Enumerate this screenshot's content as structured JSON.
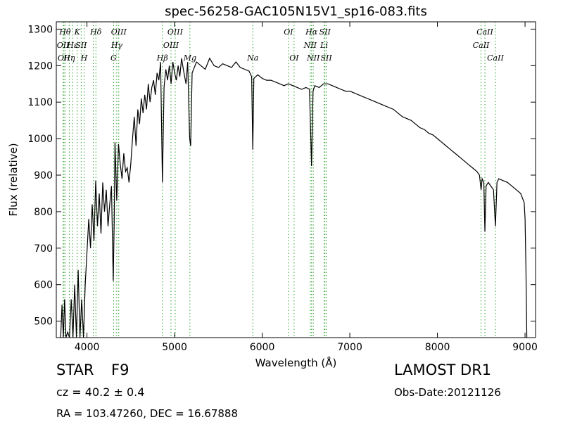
{
  "chart_data": {
    "type": "line",
    "title": "spec-56258-GAC105N15V1_sp16-083.fits",
    "xlabel": "Wavelength (Å)",
    "ylabel": "Flux (relative)",
    "xlim": [
      3650,
      9120
    ],
    "ylim": [
      455,
      1320
    ],
    "xticks": [
      4000,
      5000,
      6000,
      7000,
      8000,
      9000
    ],
    "yticks": [
      500,
      600,
      700,
      800,
      900,
      1000,
      1100,
      1200,
      1300
    ],
    "grid": false,
    "series": [
      {
        "color": "#000000",
        "points": [
          [
            3700,
            455
          ],
          [
            3715,
            545
          ],
          [
            3730,
            455
          ],
          [
            3745,
            560
          ],
          [
            3760,
            455
          ],
          [
            3780,
            470
          ],
          [
            3800,
            455
          ],
          [
            3820,
            560
          ],
          [
            3840,
            455
          ],
          [
            3860,
            600
          ],
          [
            3880,
            455
          ],
          [
            3900,
            640
          ],
          [
            3920,
            455
          ],
          [
            3940,
            560
          ],
          [
            3960,
            455
          ],
          [
            3980,
            600
          ],
          [
            4000,
            690
          ],
          [
            4020,
            780
          ],
          [
            4040,
            700
          ],
          [
            4060,
            820
          ],
          [
            4080,
            720
          ],
          [
            4100,
            885
          ],
          [
            4120,
            760
          ],
          [
            4140,
            850
          ],
          [
            4160,
            740
          ],
          [
            4180,
            880
          ],
          [
            4200,
            800
          ],
          [
            4220,
            860
          ],
          [
            4240,
            760
          ],
          [
            4260,
            820
          ],
          [
            4280,
            870
          ],
          [
            4300,
            610
          ],
          [
            4310,
            760
          ],
          [
            4320,
            990
          ],
          [
            4340,
            830
          ],
          [
            4360,
            985
          ],
          [
            4380,
            930
          ],
          [
            4400,
            890
          ],
          [
            4420,
            960
          ],
          [
            4440,
            910
          ],
          [
            4460,
            920
          ],
          [
            4480,
            880
          ],
          [
            4500,
            930
          ],
          [
            4520,
            1000
          ],
          [
            4540,
            1060
          ],
          [
            4560,
            980
          ],
          [
            4580,
            1080
          ],
          [
            4600,
            1040
          ],
          [
            4620,
            1110
          ],
          [
            4640,
            1070
          ],
          [
            4660,
            1120
          ],
          [
            4680,
            1080
          ],
          [
            4700,
            1150
          ],
          [
            4720,
            1100
          ],
          [
            4740,
            1140
          ],
          [
            4760,
            1160
          ],
          [
            4780,
            1120
          ],
          [
            4800,
            1180
          ],
          [
            4820,
            1160
          ],
          [
            4840,
            1210
          ],
          [
            4861,
            880
          ],
          [
            4880,
            1140
          ],
          [
            4900,
            1190
          ],
          [
            4920,
            1160
          ],
          [
            4940,
            1200
          ],
          [
            4960,
            1150
          ],
          [
            4980,
            1210
          ],
          [
            5000,
            1180
          ],
          [
            5020,
            1160
          ],
          [
            5040,
            1200
          ],
          [
            5060,
            1170
          ],
          [
            5080,
            1220
          ],
          [
            5100,
            1190
          ],
          [
            5130,
            1150
          ],
          [
            5150,
            1210
          ],
          [
            5172,
            1000
          ],
          [
            5183,
            980
          ],
          [
            5200,
            1180
          ],
          [
            5250,
            1210
          ],
          [
            5300,
            1200
          ],
          [
            5350,
            1190
          ],
          [
            5400,
            1220
          ],
          [
            5450,
            1200
          ],
          [
            5500,
            1195
          ],
          [
            5550,
            1205
          ],
          [
            5600,
            1200
          ],
          [
            5650,
            1195
          ],
          [
            5700,
            1210
          ],
          [
            5750,
            1195
          ],
          [
            5800,
            1190
          ],
          [
            5850,
            1185
          ],
          [
            5880,
            1170
          ],
          [
            5893,
            970
          ],
          [
            5905,
            1165
          ],
          [
            5950,
            1175
          ],
          [
            6000,
            1165
          ],
          [
            6050,
            1160
          ],
          [
            6100,
            1160
          ],
          [
            6150,
            1155
          ],
          [
            6200,
            1150
          ],
          [
            6250,
            1145
          ],
          [
            6300,
            1150
          ],
          [
            6350,
            1145
          ],
          [
            6400,
            1140
          ],
          [
            6450,
            1135
          ],
          [
            6500,
            1140
          ],
          [
            6540,
            1135
          ],
          [
            6563,
            925
          ],
          [
            6580,
            1130
          ],
          [
            6600,
            1145
          ],
          [
            6650,
            1140
          ],
          [
            6700,
            1150
          ],
          [
            6750,
            1150
          ],
          [
            6800,
            1145
          ],
          [
            6850,
            1140
          ],
          [
            6900,
            1135
          ],
          [
            6950,
            1130
          ],
          [
            7000,
            1130
          ],
          [
            7050,
            1125
          ],
          [
            7100,
            1120
          ],
          [
            7150,
            1115
          ],
          [
            7200,
            1110
          ],
          [
            7250,
            1105
          ],
          [
            7300,
            1100
          ],
          [
            7350,
            1095
          ],
          [
            7400,
            1090
          ],
          [
            7450,
            1085
          ],
          [
            7500,
            1080
          ],
          [
            7550,
            1070
          ],
          [
            7600,
            1060
          ],
          [
            7650,
            1055
          ],
          [
            7700,
            1050
          ],
          [
            7750,
            1040
          ],
          [
            7800,
            1030
          ],
          [
            7850,
            1025
          ],
          [
            7900,
            1015
          ],
          [
            7950,
            1010
          ],
          [
            8000,
            1000
          ],
          [
            8050,
            990
          ],
          [
            8100,
            980
          ],
          [
            8150,
            970
          ],
          [
            8200,
            960
          ],
          [
            8250,
            950
          ],
          [
            8300,
            940
          ],
          [
            8350,
            930
          ],
          [
            8400,
            920
          ],
          [
            8450,
            910
          ],
          [
            8480,
            900
          ],
          [
            8498,
            860
          ],
          [
            8510,
            890
          ],
          [
            8530,
            880
          ],
          [
            8542,
            745
          ],
          [
            8555,
            870
          ],
          [
            8580,
            880
          ],
          [
            8610,
            870
          ],
          [
            8640,
            860
          ],
          [
            8662,
            760
          ],
          [
            8680,
            880
          ],
          [
            8700,
            890
          ],
          [
            8750,
            885
          ],
          [
            8800,
            880
          ],
          [
            8850,
            870
          ],
          [
            8900,
            860
          ],
          [
            8950,
            850
          ],
          [
            8990,
            825
          ],
          [
            9000,
            780
          ],
          [
            9010,
            650
          ],
          [
            9020,
            455
          ]
        ]
      }
    ],
    "line_color": "#2ca02c",
    "spectral_lines": [
      {
        "wavelength": 3727,
        "labels": [
          "OII"
        ]
      },
      {
        "wavelength": 3737,
        "labels": [
          "OII"
        ]
      },
      {
        "wavelength": 3750,
        "labels": [
          "Hθ"
        ]
      },
      {
        "wavelength": 3798,
        "labels": [
          "Hη"
        ]
      },
      {
        "wavelength": 3835,
        "labels": [
          "Hε"
        ]
      },
      {
        "wavelength": 3889,
        "labels": [
          "K"
        ]
      },
      {
        "wavelength": 3934,
        "labels": [
          "SII"
        ]
      },
      {
        "wavelength": 3968,
        "labels": [
          "H"
        ]
      },
      {
        "wavelength": 4072,
        "labels": [
          "Hδ"
        ]
      },
      {
        "wavelength": 4102,
        "labels": [
          "Hδ"
        ]
      },
      {
        "wavelength": 4304,
        "labels": [
          "G"
        ]
      },
      {
        "wavelength": 4340,
        "labels": [
          "Hγ"
        ]
      },
      {
        "wavelength": 4363,
        "labels": [
          "OIII"
        ]
      },
      {
        "wavelength": 4861,
        "labels": [
          "Hβ"
        ]
      },
      {
        "wavelength": 4959,
        "labels": [
          "OIII"
        ]
      },
      {
        "wavelength": 5007,
        "labels": [
          "OIII"
        ]
      },
      {
        "wavelength": 5175,
        "labels": [
          "Mg"
        ]
      },
      {
        "wavelength": 5893,
        "labels": [
          "Na"
        ]
      },
      {
        "wavelength": 6300,
        "labels": [
          "OI"
        ]
      },
      {
        "wavelength": 6364,
        "labels": [
          "OI"
        ]
      },
      {
        "wavelength": 6548,
        "labels": [
          "NII"
        ]
      },
      {
        "wavelength": 6563,
        "labels": [
          "Hα"
        ]
      },
      {
        "wavelength": 6583,
        "labels": [
          "NII"
        ]
      },
      {
        "wavelength": 6707,
        "labels": [
          "Li"
        ]
      },
      {
        "wavelength": 6716,
        "labels": [
          "SII"
        ]
      },
      {
        "wavelength": 6731,
        "labels": [
          "SII"
        ]
      },
      {
        "wavelength": 8498,
        "labels": [
          "CaII"
        ]
      },
      {
        "wavelength": 8542,
        "labels": [
          "CaII"
        ]
      },
      {
        "wavelength": 8662,
        "labels": [
          "CaII"
        ]
      }
    ],
    "line_labels": [
      {
        "text": "Hθ",
        "wavelength": 3750,
        "row": 1
      },
      {
        "text": "K",
        "wavelength": 3889,
        "row": 1
      },
      {
        "text": "Hδ",
        "wavelength": 4102,
        "row": 1
      },
      {
        "text": "OIII",
        "wavelength": 4363,
        "row": 1
      },
      {
        "text": "OIII",
        "wavelength": 5007,
        "row": 1
      },
      {
        "text": "OI",
        "wavelength": 6300,
        "row": 1
      },
      {
        "text": "Hα",
        "wavelength": 6563,
        "row": 1
      },
      {
        "text": "SII",
        "wavelength": 6716,
        "row": 1
      },
      {
        "text": "CaII",
        "wavelength": 8542,
        "row": 1
      },
      {
        "text": "OII",
        "wavelength": 3727,
        "row": 2
      },
      {
        "text": "Hε",
        "wavelength": 3835,
        "row": 2
      },
      {
        "text": "SII",
        "wavelength": 3934,
        "row": 2
      },
      {
        "text": "Hγ",
        "wavelength": 4340,
        "row": 2
      },
      {
        "text": "OIII",
        "wavelength": 4959,
        "row": 2
      },
      {
        "text": "NII",
        "wavelength": 6548,
        "row": 2
      },
      {
        "text": "Li",
        "wavelength": 6707,
        "row": 2
      },
      {
        "text": "CaII",
        "wavelength": 8498,
        "row": 2
      },
      {
        "text": "OII",
        "wavelength": 3737,
        "row": 3
      },
      {
        "text": "Hη",
        "wavelength": 3798,
        "row": 3
      },
      {
        "text": "H",
        "wavelength": 3968,
        "row": 3
      },
      {
        "text": "G",
        "wavelength": 4304,
        "row": 3
      },
      {
        "text": "Hβ",
        "wavelength": 4861,
        "row": 3
      },
      {
        "text": "Mg",
        "wavelength": 5175,
        "row": 3
      },
      {
        "text": "Na",
        "wavelength": 5893,
        "row": 3
      },
      {
        "text": "OI",
        "wavelength": 6364,
        "row": 3
      },
      {
        "text": "NII",
        "wavelength": 6583,
        "row": 3
      },
      {
        "text": "SII",
        "wavelength": 6731,
        "row": 3
      },
      {
        "text": "CaII",
        "wavelength": 8662,
        "row": 3
      }
    ]
  },
  "info": {
    "object_class": "STAR",
    "subclass": "F9",
    "survey": "LAMOST DR1",
    "redshift": "cz = 40.2  ± 0.4",
    "obs_date": "Obs-Date:20121126",
    "coords": "RA = 103.47260, DEC = 16.67888"
  }
}
